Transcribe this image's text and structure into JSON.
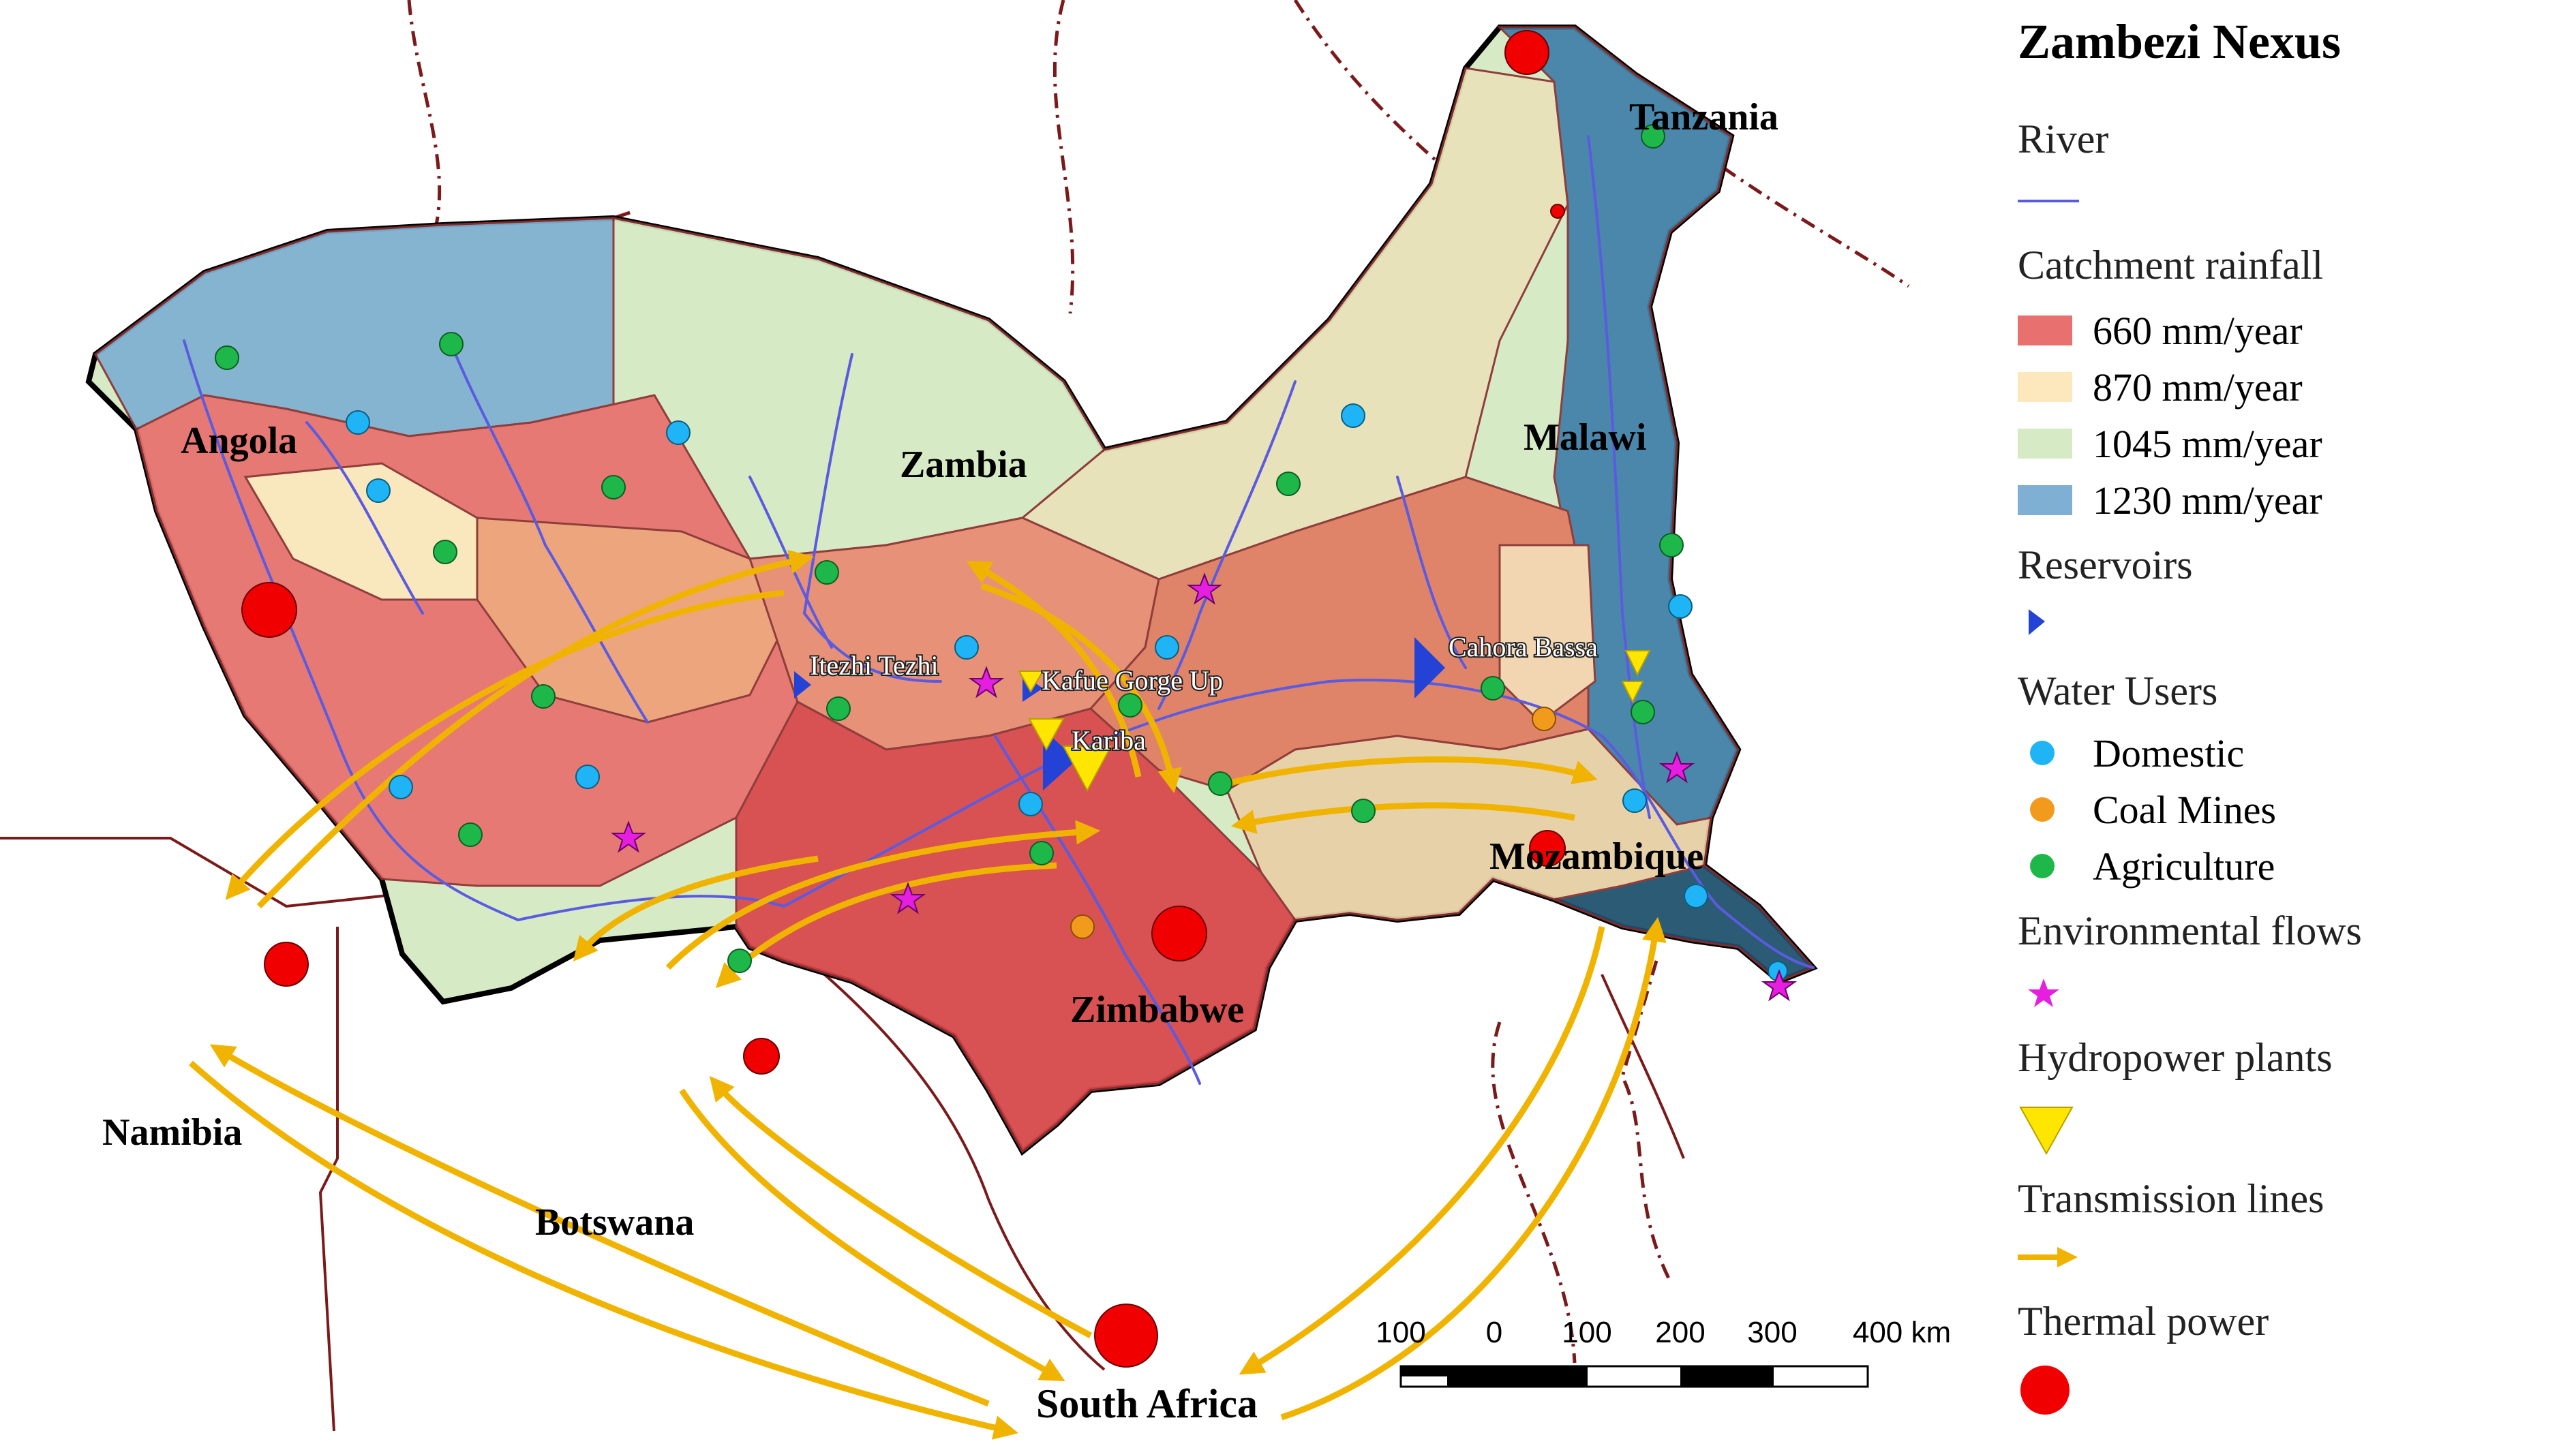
{
  "colors": {
    "rain_660": "#e8706e",
    "rain_870": "#fde7bd",
    "rain_1045": "#d6ebc5",
    "rain_1230": "#7fb0d3",
    "river": "#5b5be0",
    "reservoir": "#2443d6",
    "domestic": "#1eb4f5",
    "coal": "#f29a1b",
    "agriculture": "#1eb84a",
    "env_flow": "#e51ee0",
    "hydropower": "#ffe600",
    "transmission": "#f0b400",
    "thermal": "#f00000",
    "border": "#7a1a1a",
    "basin_outline": "#000000"
  },
  "legend": {
    "title": "Zambezi Nexus",
    "river": "River",
    "catchment_heading": "Catchment rainfall",
    "rain_660": "660 mm/year",
    "rain_870": "870 mm/year",
    "rain_1045": "1045 mm/year",
    "rain_1230": "1230 mm/year",
    "reservoirs": "Reservoirs",
    "water_users": "Water Users",
    "domestic": "Domestic",
    "coal": "Coal Mines",
    "agriculture": "Agriculture",
    "env_flows": "Environmental flows",
    "hydropower": "Hydropower plants",
    "transmission": "Transmission lines",
    "thermal": "Thermal power"
  },
  "countries": {
    "tanzania": "Tanzania",
    "angola": "Angola",
    "zambia": "Zambia",
    "malawi": "Malawi",
    "mozambique": "Mozambique",
    "zimbabwe": "Zimbabwe",
    "namibia": "Namibia",
    "botswana": "Botswana",
    "south_africa": "South Africa"
  },
  "sites": {
    "itezhi_tezhi": "Itezhi Tezhi",
    "kafue_gorge_up": "Kafue Gorge Up",
    "kariba": "Kariba",
    "cahora_bassa": "Cahora Bassa"
  },
  "scale_bar": {
    "ticks": [
      "100",
      "0",
      "100",
      "200",
      "300",
      "400 km"
    ]
  }
}
